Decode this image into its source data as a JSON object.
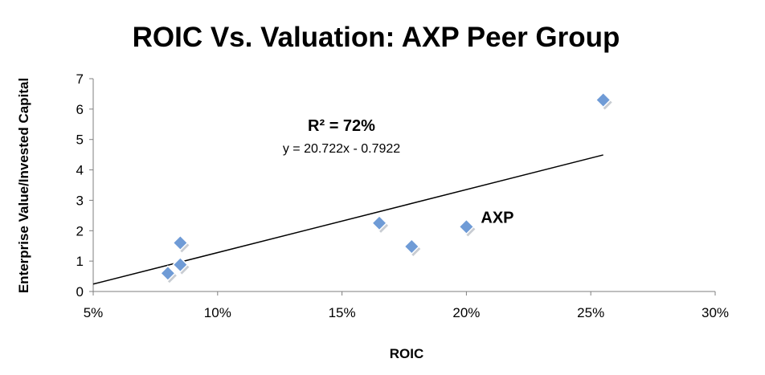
{
  "chart_data": {
    "type": "scatter",
    "title": "ROIC Vs. Valuation: AXP Peer Group",
    "xlabel": "ROIC",
    "ylabel": "Enterprise Value/Invested Capital",
    "xlim": [
      0.05,
      0.3
    ],
    "ylim": [
      0,
      7
    ],
    "x_ticks": [
      0.05,
      0.1,
      0.15,
      0.2,
      0.25,
      0.3
    ],
    "x_tick_labels": [
      "5%",
      "10%",
      "15%",
      "20%",
      "25%",
      "30%"
    ],
    "y_ticks": [
      0,
      1,
      2,
      3,
      4,
      5,
      6,
      7
    ],
    "y_tick_labels": [
      "0",
      "1",
      "2",
      "3",
      "4",
      "5",
      "6",
      "7"
    ],
    "grid": false,
    "marker_color": "#6f9bd6",
    "points": [
      {
        "x": 0.08,
        "y": 0.6
      },
      {
        "x": 0.085,
        "y": 0.88
      },
      {
        "x": 0.085,
        "y": 1.6
      },
      {
        "x": 0.165,
        "y": 2.25
      },
      {
        "x": 0.178,
        "y": 1.48
      },
      {
        "x": 0.2,
        "y": 2.13
      },
      {
        "x": 0.255,
        "y": 6.3
      }
    ],
    "trendline": {
      "slope": 20.722,
      "intercept": -0.7922,
      "x_start": 0.05,
      "x_end": 0.255,
      "r_squared_label": "R² = 72%",
      "equation_label": "y = 20.722x - 0.7922"
    },
    "annotations": [
      {
        "text": "AXP",
        "x": 0.2,
        "y": 2.13
      }
    ]
  }
}
